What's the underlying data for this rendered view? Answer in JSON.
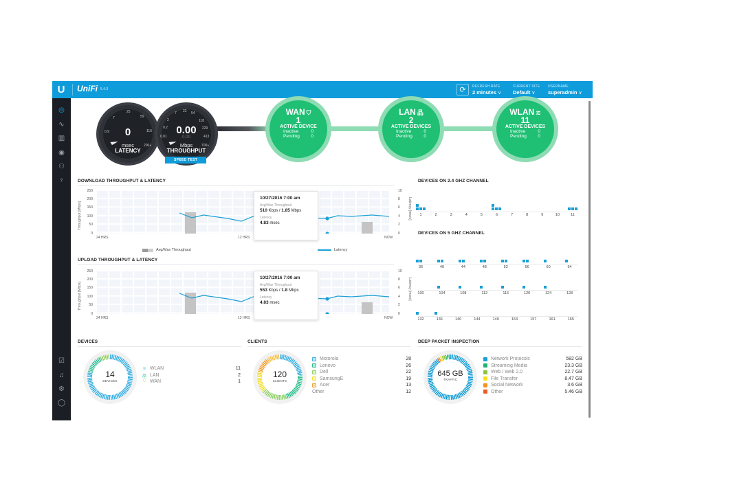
{
  "header": {
    "brand_mark": "U",
    "product": "UniFi",
    "version": "5.4.3",
    "refresh_rate": {
      "label": "REFRESH RATE",
      "value": "2 minutes"
    },
    "current_site": {
      "label": "CURRENT SITE",
      "value": "Default"
    },
    "username": {
      "label": "USERNAME",
      "value": "superadmin"
    },
    "chevron": "∨",
    "refresh_icon": "⟳"
  },
  "sidebar": {
    "items": [
      {
        "name": "dashboard",
        "icon": "◎",
        "active": true
      },
      {
        "name": "statistics",
        "icon": "∿"
      },
      {
        "name": "map",
        "icon": "▥"
      },
      {
        "name": "devices",
        "icon": "◉"
      },
      {
        "name": "clients",
        "icon": "⚇"
      },
      {
        "name": "insights",
        "icon": "♀"
      }
    ],
    "bottom_items": [
      {
        "name": "events",
        "icon": "☑"
      },
      {
        "name": "alerts",
        "icon": "♫"
      },
      {
        "name": "settings",
        "icon": "⚙"
      },
      {
        "name": "chat",
        "icon": "◯"
      }
    ]
  },
  "gauges": {
    "latency": {
      "value": "0",
      "unit": "msec",
      "name": "LATENCY",
      "ticks": [
        "0.9",
        "7",
        "25",
        "59",
        "116",
        "200+"
      ]
    },
    "throughput": {
      "value": "0.00",
      "sub_value": "0.00",
      "unit": "Mbps",
      "name": "THROUGHPUT",
      "ticks": [
        "0.01",
        "0.2",
        "2",
        "7",
        "22",
        "54",
        "118",
        "229",
        "413",
        "700+"
      ]
    },
    "speed_test_label": "SPEED TEST"
  },
  "network": {
    "wan": {
      "title": "WAN",
      "icon": "⛉",
      "count": "1",
      "desc": "ACTIVE DEVICE",
      "inactive_label": "Inactive",
      "inactive": "0",
      "pending_label": "Pending",
      "pending": "0"
    },
    "lan": {
      "title": "LAN",
      "icon": "品",
      "count": "2",
      "desc": "ACTIVE DEVICES",
      "inactive_label": "Inactive",
      "inactive": "0",
      "pending_label": "Pending",
      "pending": "0"
    },
    "wlan": {
      "title": "WLAN",
      "icon": "≋",
      "count": "11",
      "desc": "ACTIVE DEVICES",
      "inactive_label": "Inactive",
      "inactive": "0",
      "pending_label": "Pending",
      "pending": "0"
    }
  },
  "download": {
    "title": "DOWNLOAD THROUGHPUT & LATENCY",
    "y_axis_title": "Throughput [Mbps]",
    "y2_axis_title": "Latency [msec]",
    "y_ticks": [
      "250",
      "200",
      "150",
      "100",
      "50",
      "0"
    ],
    "y2_ticks": [
      "10",
      "8",
      "6",
      "4",
      "2",
      "0"
    ],
    "x_ticks": [
      "24 HRS",
      "12 HRS",
      "NOW"
    ],
    "legend_throughput": "Avg/Max Throughput",
    "legend_latency": "Latency",
    "tooltip": {
      "date": "10/27/2016 7:00 am",
      "throughput_label": "Avg/Max Throughput",
      "avg": "510",
      "avg_unit": "Kbps",
      "sep": " / ",
      "max": "1.85",
      "max_unit": "Mbps",
      "latency_label": "Latency",
      "latency": "4.83",
      "latency_unit": "msec"
    }
  },
  "upload": {
    "title": "UPLOAD THROUGHPUT & LATENCY",
    "y_axis_title": "Throughput [Mbps]",
    "y2_axis_title": "Latency [msec]",
    "y_ticks": [
      "250",
      "200",
      "150",
      "100",
      "50",
      "0"
    ],
    "y2_ticks": [
      "10",
      "8",
      "6",
      "4",
      "2",
      "0"
    ],
    "x_ticks": [
      "24 HRS",
      "12 HRS",
      "NOW"
    ],
    "tooltip": {
      "date": "10/27/2016 7:00 am",
      "throughput_label": "Avg/Max Throughput",
      "avg": "553",
      "avg_unit": "Kbps",
      "sep": " / ",
      "max": "1.8",
      "max_unit": "Mbps",
      "latency_label": "Latency",
      "latency": "4.83",
      "latency_unit": "msec"
    }
  },
  "channels_24": {
    "title": "DEVICES ON 2.4 GHZ CHANNEL",
    "channels": [
      "1",
      "2",
      "3",
      "4",
      "5",
      "6",
      "7",
      "8",
      "9",
      "10",
      "11"
    ],
    "device_counts": [
      4,
      0,
      0,
      0,
      0,
      4,
      0,
      0,
      0,
      0,
      3
    ]
  },
  "channels_5": {
    "title": "DEVICES ON 5 GHZ CHANNEL",
    "rows": [
      {
        "channels": [
          "36",
          "40",
          "44",
          "48",
          "52",
          "56",
          "60",
          "64"
        ],
        "device_counts": [
          2,
          2,
          2,
          2,
          2,
          2,
          1,
          1
        ]
      },
      {
        "channels": [
          "100",
          "104",
          "108",
          "112",
          "116",
          "120",
          "124",
          "128"
        ],
        "device_counts": [
          0,
          1,
          1,
          1,
          1,
          1,
          1,
          0
        ]
      },
      {
        "channels": [
          "132",
          "136",
          "140",
          "144",
          "149",
          "153",
          "157",
          "161",
          "165"
        ],
        "device_counts": [
          1,
          1,
          0,
          0,
          0,
          0,
          0,
          0,
          0
        ]
      }
    ]
  },
  "devices": {
    "title": "DEVICES",
    "total": "14",
    "total_label": "DEVICES",
    "items": [
      {
        "name": "WLAN",
        "value": "11",
        "icon": "≋",
        "color": "#5bbde4"
      },
      {
        "name": "LAN",
        "value": "2",
        "icon": "品",
        "color": "#3fbf9a"
      },
      {
        "name": "WAN",
        "value": "1",
        "icon": "⛉",
        "color": "#9bd26a"
      }
    ]
  },
  "clients": {
    "title": "CLIENTS",
    "total": "120",
    "total_label": "CLIENTS",
    "items": [
      {
        "name": "Motorola",
        "value": "28",
        "color": "#3fb1e3"
      },
      {
        "name": "Lenovo",
        "value": "26",
        "color": "#2fbf8f"
      },
      {
        "name": "Dell",
        "value": "22",
        "color": "#8fd26a"
      },
      {
        "name": "SamsungE",
        "value": "19",
        "color": "#f2e23a"
      },
      {
        "name": "Acer",
        "value": "13",
        "color": "#f0a23a"
      },
      {
        "name": "Other",
        "value": "12",
        "color": ""
      }
    ]
  },
  "dpi": {
    "title": "DEEP PACKET INSPECTION",
    "total": "645 GB",
    "total_label": "TRAFFIC",
    "items": [
      {
        "name": "Network Protocols",
        "value": "582 GB",
        "color": "#1a9fd6"
      },
      {
        "name": "Streaming Media",
        "value": "23.3 GB",
        "color": "#21b573"
      },
      {
        "name": "Web / Web 2.0",
        "value": "22.7 GB",
        "color": "#8cc63f"
      },
      {
        "name": "File Transfer",
        "value": "8.47 GB",
        "color": "#f7e11a"
      },
      {
        "name": "Social Network",
        "value": "3.6 GB",
        "color": "#f3931f"
      },
      {
        "name": "Other",
        "value": "5.46 GB",
        "color": "#ef5a24"
      }
    ]
  }
}
